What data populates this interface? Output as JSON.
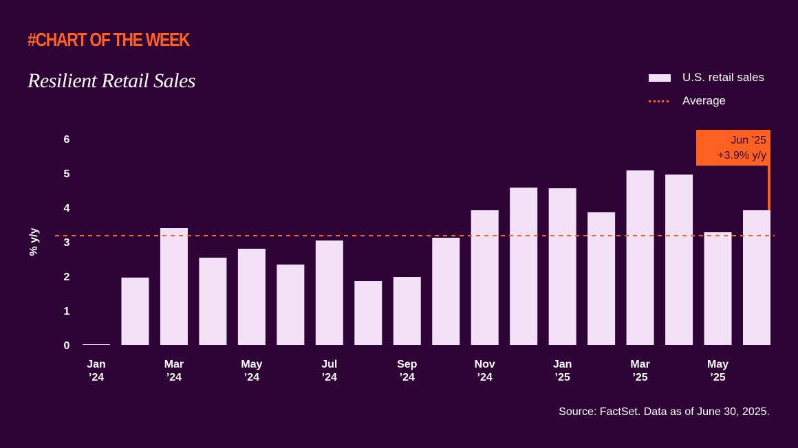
{
  "header": {
    "kicker": "#CHART OF THE WEEK",
    "title": "Resilient Retail Sales"
  },
  "legend": {
    "items": [
      {
        "label": "U.S. retail sales",
        "type": "bar",
        "color": "#f3e2f7"
      },
      {
        "label": "Average",
        "type": "dotted-line",
        "color": "#ff6120"
      }
    ]
  },
  "footer": {
    "source": "Source: FactSet. Data as of June 30, 2025."
  },
  "colors": {
    "background": "#2e0436",
    "bar": "#f3e2f7",
    "accent": "#ff6120",
    "text": "#ffffff"
  },
  "chart_data": {
    "type": "bar",
    "title": "Resilient Retail Sales",
    "xlabel": "",
    "ylabel": "% y/y",
    "ylim": [
      0,
      6
    ],
    "yticks": [
      0,
      1,
      2,
      3,
      4,
      5,
      6
    ],
    "grid": false,
    "legend_position": "top-right",
    "categories": [
      "Jan '24",
      "Feb '24",
      "Mar '24",
      "Apr '24",
      "May '24",
      "Jun '24",
      "Jul '24",
      "Aug '24",
      "Sep '24",
      "Oct '24",
      "Nov '24",
      "Dec '24",
      "Jan '25",
      "Feb '25",
      "Mar '25",
      "Apr '25",
      "May '25",
      "Jun '25"
    ],
    "xtick_labels": [
      {
        "index": 0,
        "line1": "Jan",
        "line2": "’24"
      },
      {
        "index": 2,
        "line1": "Mar",
        "line2": "’24"
      },
      {
        "index": 4,
        "line1": "May",
        "line2": "’24"
      },
      {
        "index": 6,
        "line1": "Jul",
        "line2": "’24"
      },
      {
        "index": 8,
        "line1": "Sep",
        "line2": "’24"
      },
      {
        "index": 10,
        "line1": "Nov",
        "line2": "’24"
      },
      {
        "index": 12,
        "line1": "Jan",
        "line2": "’25"
      },
      {
        "index": 14,
        "line1": "Mar",
        "line2": "’25"
      },
      {
        "index": 16,
        "line1": "May",
        "line2": "’25"
      }
    ],
    "series": [
      {
        "name": "U.S. retail sales",
        "values": [
          0.0,
          1.96,
          3.4,
          2.54,
          2.8,
          2.34,
          3.04,
          1.86,
          1.98,
          3.12,
          3.92,
          4.58,
          4.56,
          3.86,
          5.08,
          4.96,
          3.28,
          3.92
        ]
      }
    ],
    "average": {
      "name": "Average",
      "value": 3.18
    },
    "annotation": {
      "index": 17,
      "line1": "Jun ’25",
      "line2": "+3.9% y/y"
    }
  }
}
